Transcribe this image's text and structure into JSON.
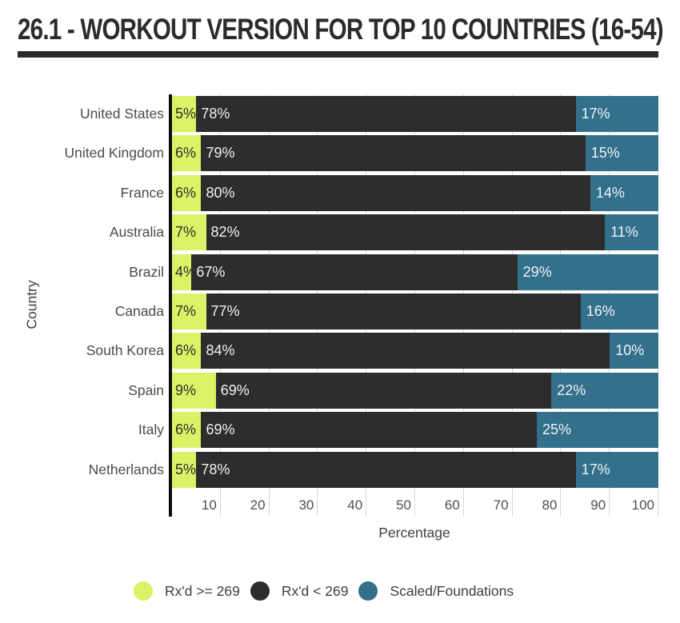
{
  "title": "26.1 - WORKOUT VERSION FOR TOP 10 COUNTRIES (16-54)",
  "chart_data": {
    "type": "bar",
    "orientation": "horizontal",
    "stacked": true,
    "title": "26.1 - WORKOUT VERSION FOR TOP 10 COUNTRIES (16-54)",
    "xlabel": "Percentage",
    "ylabel": "Country",
    "xlim": [
      0,
      100
    ],
    "xticks": [
      10,
      20,
      30,
      40,
      50,
      60,
      70,
      80,
      90,
      100
    ],
    "grid": true,
    "legend_position": "bottom",
    "bar_label_format": "{value}%",
    "categories": [
      "United States",
      "United Kingdom",
      "France",
      "Australia",
      "Brazil",
      "Canada",
      "South Korea",
      "Spain",
      "Italy",
      "Netherlands"
    ],
    "series": [
      {
        "name": "Rx'd >= 269",
        "color": "#dcf165",
        "values": [
          5,
          6,
          6,
          7,
          4,
          7,
          6,
          9,
          6,
          5
        ]
      },
      {
        "name": "Rx'd < 269",
        "color": "#2e2d2d",
        "values": [
          78,
          79,
          80,
          82,
          67,
          77,
          84,
          69,
          69,
          78
        ]
      },
      {
        "name": "Scaled/Foundations",
        "color": "#32708c",
        "values": [
          17,
          15,
          14,
          11,
          29,
          16,
          10,
          22,
          25,
          17
        ]
      }
    ]
  },
  "colors": {
    "title": "#2b2b2b",
    "title_rule": "#2b2b2b",
    "axis_line": "#0e0e0e",
    "gridline": "#d7d7d7",
    "category_text": "#4a4a4a",
    "tick_text": "#4e4e4e",
    "axis_title_text": "#404040",
    "legend_text": "#3e3e3e",
    "label_on_light": "#2d2d2d",
    "label_on_dark": "#f2f2f2",
    "background": "#ffffff"
  }
}
